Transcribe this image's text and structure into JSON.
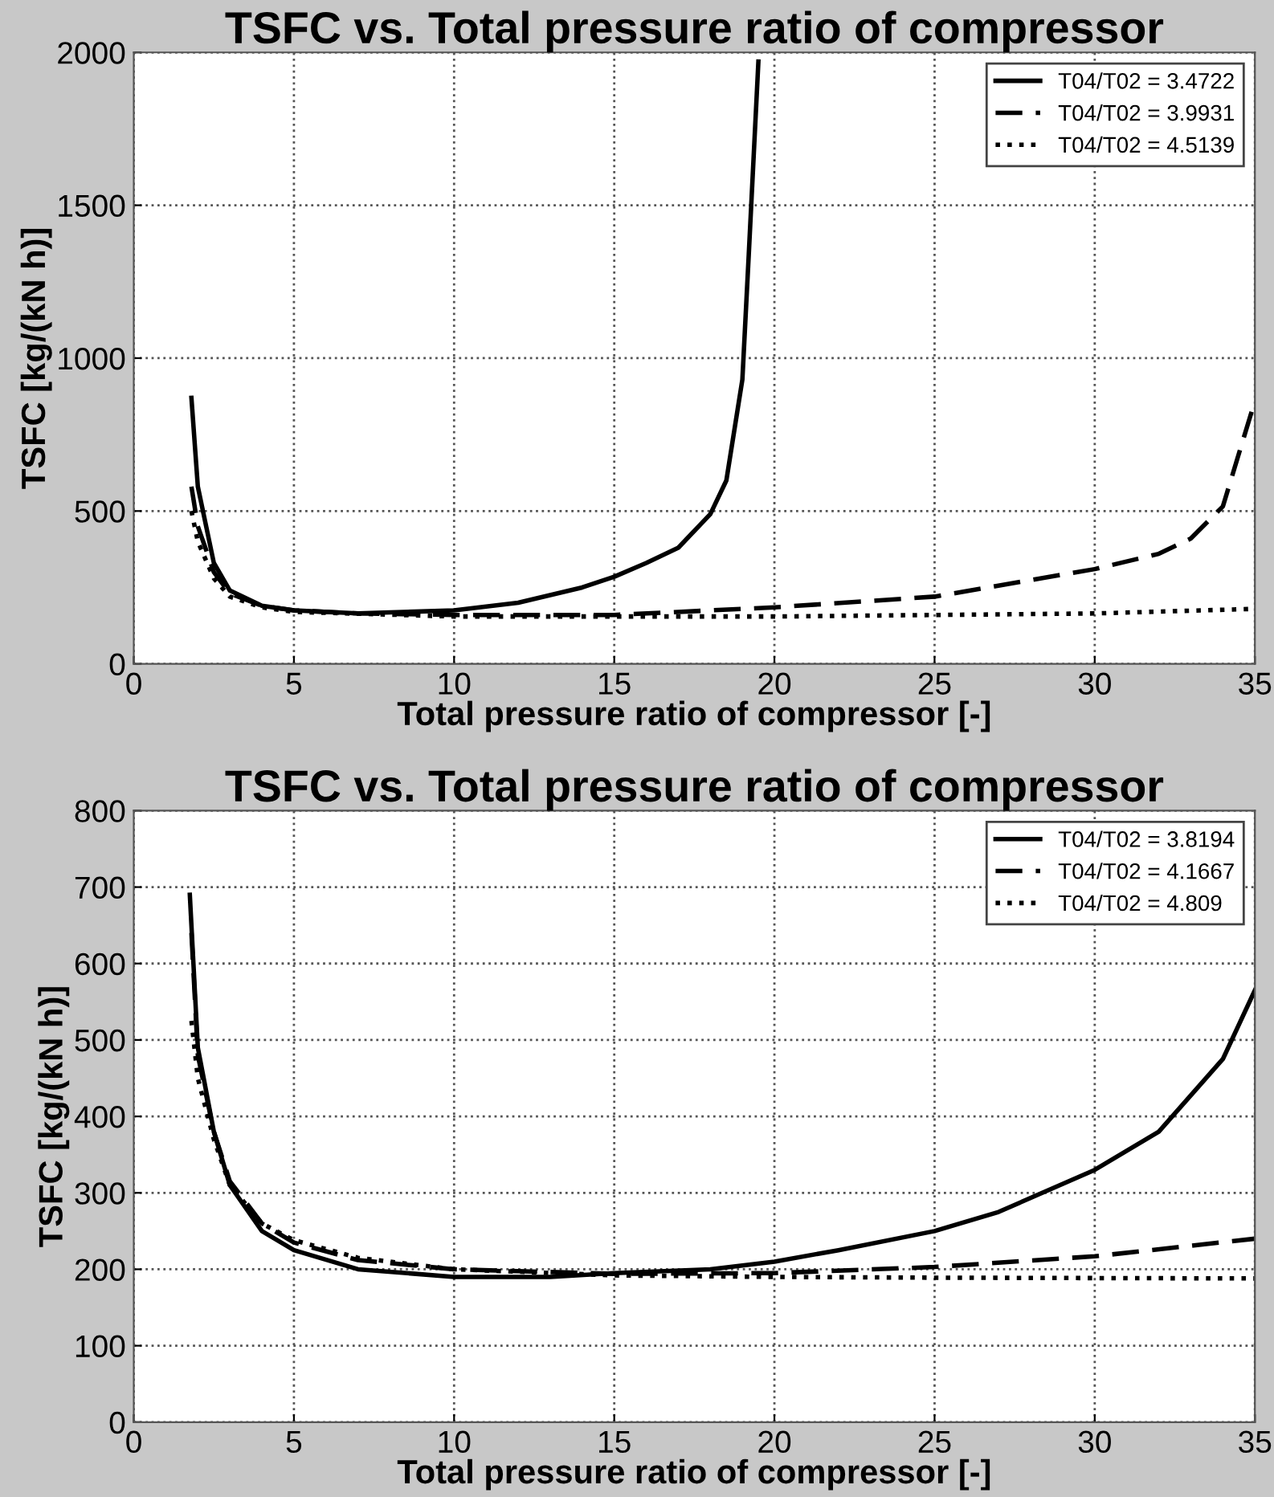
{
  "chart_data": [
    {
      "type": "line",
      "title": "TSFC vs. Total pressure ratio of compressor",
      "xlabel": "Total pressure ratio of compressor [-]",
      "ylabel": "TSFC [kg/(kN h)]",
      "xlim": [
        0,
        35
      ],
      "ylim": [
        0,
        2000
      ],
      "xticks": [
        0,
        5,
        10,
        15,
        20,
        25,
        30,
        35
      ],
      "yticks": [
        0,
        500,
        1000,
        1500,
        2000
      ],
      "grid": true,
      "legend": "top right",
      "series": [
        {
          "name": "T04/T02 = 3.4722",
          "color": "#000000",
          "line_style": "solid",
          "x": [
            1.8,
            2,
            2.5,
            3,
            4,
            5,
            7,
            10,
            12,
            14,
            15,
            16,
            17,
            18,
            18.5,
            19,
            19.2,
            19.5
          ],
          "values": [
            870,
            580,
            330,
            240,
            190,
            175,
            165,
            175,
            200,
            250,
            285,
            330,
            380,
            490,
            600,
            930,
            1340,
            1970
          ]
        },
        {
          "name": "T04/T02 = 3.9931",
          "color": "#000000",
          "line_style": "dashed",
          "x": [
            1.8,
            2,
            2.5,
            3,
            4,
            5,
            7,
            10,
            15,
            20,
            25,
            30,
            32,
            33,
            34,
            35
          ],
          "values": [
            580,
            450,
            300,
            230,
            190,
            175,
            165,
            160,
            160,
            185,
            220,
            310,
            360,
            410,
            515,
            860
          ]
        },
        {
          "name": "T04/T02 = 4.5139",
          "color": "#000000",
          "line_style": "dotted",
          "x": [
            1.8,
            2,
            2.5,
            3,
            4,
            5,
            10,
            20,
            30,
            35
          ],
          "values": [
            500,
            400,
            280,
            220,
            185,
            170,
            155,
            155,
            165,
            180
          ]
        }
      ]
    },
    {
      "type": "line",
      "title": "TSFC vs. Total pressure ratio of compressor",
      "xlabel": "Total pressure ratio of compressor [-]",
      "ylabel": "TSFC [kg/(kN h)]",
      "xlim": [
        0,
        35
      ],
      "ylim": [
        0,
        800
      ],
      "xticks": [
        0,
        5,
        10,
        15,
        20,
        25,
        30,
        35
      ],
      "yticks": [
        0,
        100,
        200,
        300,
        400,
        500,
        600,
        700,
        800
      ],
      "grid": true,
      "legend": "top right",
      "series": [
        {
          "name": "T04/T02 = 3.8194",
          "color": "#000000",
          "line_style": "solid",
          "x": [
            1.75,
            2,
            2.5,
            3,
            4,
            5,
            7,
            10,
            13,
            15,
            18,
            20,
            22,
            25,
            27,
            30,
            32,
            34,
            35
          ],
          "values": [
            690,
            490,
            380,
            310,
            250,
            225,
            200,
            190,
            190,
            195,
            200,
            210,
            225,
            250,
            275,
            330,
            380,
            475,
            565
          ]
        },
        {
          "name": "T04/T02 = 4.1667",
          "color": "#000000",
          "line_style": "dashed",
          "x": [
            1.8,
            2,
            2.5,
            3,
            4,
            5,
            7,
            10,
            15,
            20,
            25,
            30,
            35
          ],
          "values": [
            640,
            480,
            380,
            315,
            260,
            235,
            212,
            200,
            194,
            195,
            203,
            217,
            240
          ]
        },
        {
          "name": "T04/T02 = 4.809",
          "color": "#000000",
          "line_style": "dotted",
          "x": [
            1.8,
            2,
            2.5,
            3,
            4,
            5,
            7,
            10,
            15,
            20,
            25,
            35
          ],
          "values": [
            525,
            450,
            370,
            310,
            260,
            238,
            215,
            200,
            192,
            190,
            189,
            188
          ]
        }
      ]
    }
  ]
}
